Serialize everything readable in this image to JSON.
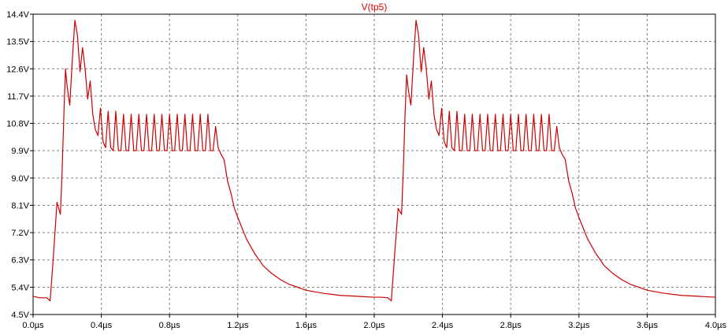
{
  "chart_data": {
    "type": "line",
    "title": "V(tp5)",
    "title_color": "#e00000",
    "grid": true,
    "grid_style": "dashed",
    "xlim": [
      0.0,
      4.0
    ],
    "ylim": [
      4.5,
      14.4
    ],
    "x_unit": "µs",
    "x_ticks": [
      0.0,
      0.4,
      0.8,
      1.2,
      1.6,
      2.0,
      2.4,
      2.8,
      3.2,
      3.6,
      4.0
    ],
    "x_tick_labels": [
      "0.0µs",
      "0.4µs",
      "0.8µs",
      "1.2µs",
      "1.6µs",
      "2.0µs",
      "2.4µs",
      "2.8µs",
      "3.2µs",
      "3.6µs",
      "4.0µs"
    ],
    "y_ticks": [
      4.5,
      5.4,
      6.3,
      7.2,
      8.1,
      9.0,
      9.9,
      10.8,
      11.7,
      12.6,
      13.5,
      14.4
    ],
    "y_tick_labels": [
      "4.5V",
      "5.4V",
      "6.3V",
      "7.2V",
      "8.1V",
      "9.0V",
      "9.9V",
      "10.8V",
      "11.7V",
      "12.6V",
      "13.5V",
      "14.4V"
    ],
    "series": [
      {
        "name": "V(tp5)",
        "color": "#cc0000",
        "x": [
          0.0,
          0.04,
          0.08,
          0.1,
          0.12,
          0.14,
          0.16,
          0.17,
          0.18,
          0.19,
          0.2,
          0.215,
          0.23,
          0.245,
          0.26,
          0.275,
          0.29,
          0.305,
          0.32,
          0.335,
          0.35,
          0.365,
          0.38,
          0.395,
          0.41,
          0.425,
          0.44,
          0.455,
          0.47,
          0.485,
          0.5,
          0.515,
          0.53,
          0.545,
          0.56,
          0.575,
          0.59,
          0.605,
          0.62,
          0.635,
          0.65,
          0.665,
          0.68,
          0.695,
          0.71,
          0.725,
          0.74,
          0.755,
          0.77,
          0.785,
          0.8,
          0.815,
          0.83,
          0.845,
          0.86,
          0.875,
          0.89,
          0.905,
          0.92,
          0.935,
          0.95,
          0.965,
          0.98,
          0.995,
          1.01,
          1.025,
          1.04,
          1.055,
          1.07,
          1.085,
          1.1,
          1.12,
          1.14,
          1.16,
          1.18,
          1.2,
          1.25,
          1.3,
          1.35,
          1.4,
          1.45,
          1.5,
          1.6,
          1.7,
          1.8,
          1.9,
          2.0,
          2.04,
          2.08,
          2.1,
          2.12,
          2.14,
          2.16,
          2.17,
          2.18,
          2.19,
          2.2,
          2.215,
          2.23,
          2.245,
          2.26,
          2.275,
          2.29,
          2.305,
          2.32,
          2.335,
          2.35,
          2.365,
          2.38,
          2.395,
          2.41,
          2.425,
          2.44,
          2.455,
          2.47,
          2.485,
          2.5,
          2.515,
          2.53,
          2.545,
          2.56,
          2.575,
          2.59,
          2.605,
          2.62,
          2.635,
          2.65,
          2.665,
          2.68,
          2.695,
          2.71,
          2.725,
          2.74,
          2.755,
          2.77,
          2.785,
          2.8,
          2.815,
          2.83,
          2.845,
          2.86,
          2.875,
          2.89,
          2.905,
          2.92,
          2.935,
          2.95,
          2.965,
          2.98,
          2.995,
          3.01,
          3.025,
          3.04,
          3.055,
          3.07,
          3.085,
          3.1,
          3.12,
          3.14,
          3.16,
          3.18,
          3.2,
          3.25,
          3.3,
          3.35,
          3.4,
          3.45,
          3.5,
          3.6,
          3.7,
          3.8,
          3.9,
          4.0
        ],
        "y": [
          5.1,
          5.05,
          5.05,
          4.95,
          6.5,
          8.2,
          7.8,
          9.2,
          11.0,
          12.6,
          12.0,
          11.4,
          12.9,
          14.2,
          13.7,
          12.5,
          13.3,
          12.6,
          11.6,
          12.2,
          11.1,
          10.6,
          10.4,
          11.3,
          10.2,
          10.0,
          11.2,
          10.0,
          9.9,
          11.2,
          9.9,
          9.9,
          11.1,
          9.9,
          9.9,
          11.1,
          9.9,
          9.9,
          11.1,
          9.9,
          9.9,
          11.1,
          9.9,
          9.9,
          11.1,
          9.9,
          9.9,
          11.1,
          9.9,
          9.9,
          11.1,
          9.9,
          9.9,
          11.1,
          9.9,
          9.9,
          11.1,
          9.9,
          9.9,
          11.1,
          9.9,
          9.9,
          11.1,
          9.9,
          9.9,
          11.1,
          9.9,
          9.9,
          10.7,
          10.0,
          9.8,
          9.6,
          8.9,
          8.5,
          8.0,
          7.7,
          7.0,
          6.5,
          6.1,
          5.85,
          5.65,
          5.5,
          5.3,
          5.2,
          5.13,
          5.1,
          5.07,
          5.07,
          5.05,
          4.95,
          6.5,
          8.0,
          7.8,
          9.2,
          11.0,
          12.4,
          11.9,
          11.4,
          12.9,
          14.2,
          13.7,
          12.5,
          13.3,
          12.6,
          11.6,
          12.2,
          11.1,
          10.6,
          10.4,
          11.3,
          10.2,
          10.0,
          11.2,
          10.0,
          9.9,
          11.2,
          9.9,
          9.9,
          11.1,
          9.9,
          9.9,
          11.1,
          9.9,
          9.9,
          11.1,
          9.9,
          9.9,
          11.1,
          9.9,
          9.9,
          11.1,
          9.9,
          9.9,
          11.1,
          9.9,
          9.9,
          11.1,
          9.9,
          9.9,
          11.1,
          9.9,
          9.9,
          11.1,
          9.9,
          9.9,
          11.1,
          9.9,
          9.9,
          11.1,
          9.9,
          9.9,
          11.1,
          9.9,
          9.9,
          10.7,
          10.0,
          9.8,
          9.6,
          8.9,
          8.5,
          8.0,
          7.7,
          7.0,
          6.5,
          6.1,
          5.85,
          5.65,
          5.5,
          5.3,
          5.2,
          5.13,
          5.1,
          5.07
        ]
      }
    ]
  }
}
